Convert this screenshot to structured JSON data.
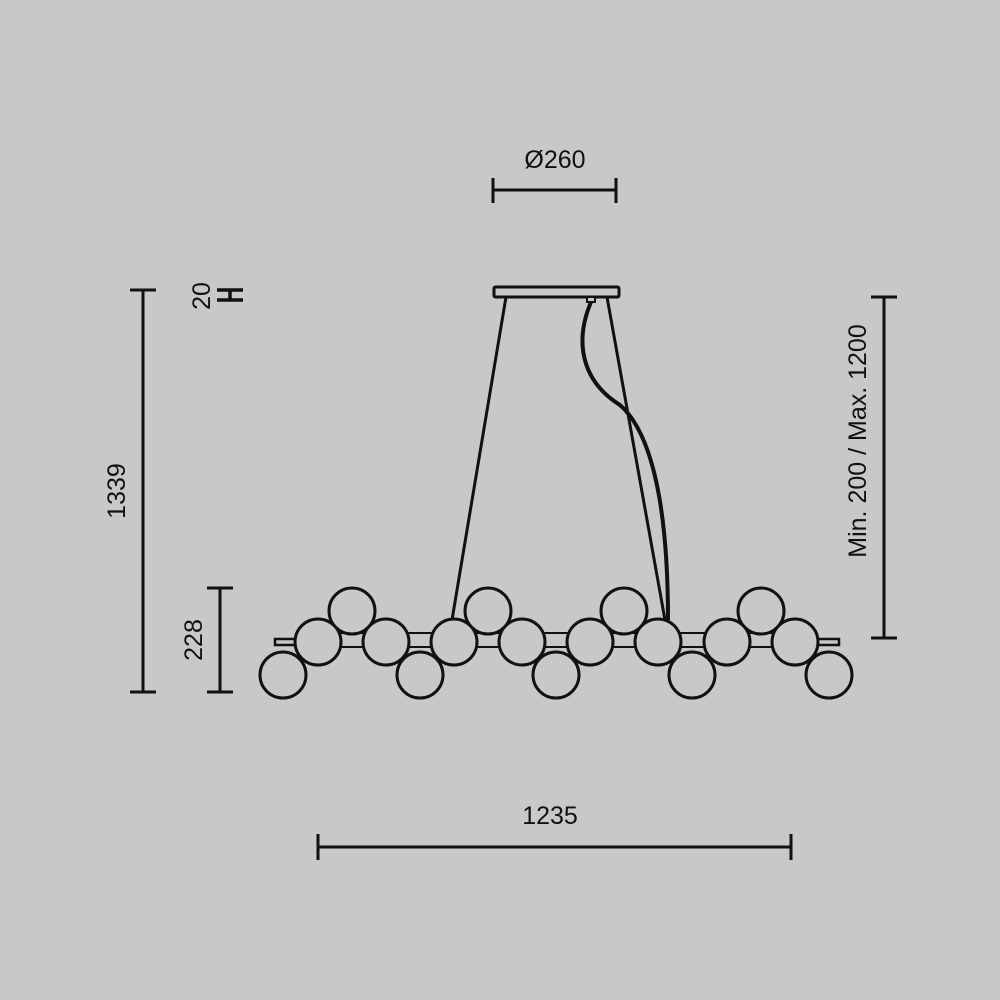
{
  "dimensions": {
    "canopy_diameter": "Ø260",
    "canopy_height": "20",
    "total_height": "1339",
    "fixture_height": "228",
    "suspension_range": "Min. 200 / Max. 1200",
    "width": "1235"
  },
  "colors": {
    "background": "#c8c8c8",
    "line": "#111111"
  }
}
